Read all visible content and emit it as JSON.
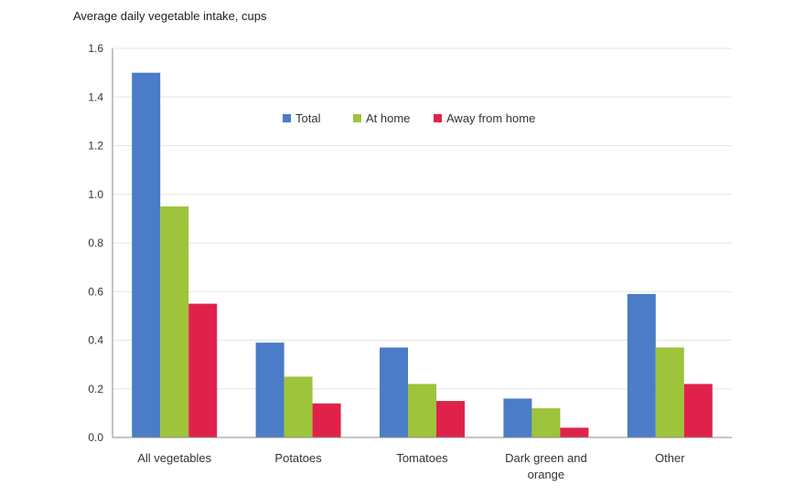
{
  "chart_data": {
    "type": "bar",
    "title": "",
    "ylabel": "Average daily vegetable intake, cups",
    "xlabel": "",
    "ylim": [
      0,
      1.6
    ],
    "yticks": [
      "0.0",
      "0.2",
      "0.4",
      "0.6",
      "0.8",
      "1.0",
      "1.2",
      "1.4",
      "1.6"
    ],
    "categories": [
      [
        "All vegetables"
      ],
      [
        "Potatoes"
      ],
      [
        "Tomatoes"
      ],
      [
        "Dark green and",
        "orange"
      ],
      [
        "Other"
      ]
    ],
    "series": [
      {
        "name": "Total",
        "color": "#4a7cc7",
        "values": [
          1.5,
          0.39,
          0.37,
          0.16,
          0.59
        ]
      },
      {
        "name": "At home",
        "color": "#9dc43a",
        "values": [
          0.95,
          0.25,
          0.22,
          0.12,
          0.37
        ]
      },
      {
        "name": "Away from home",
        "color": "#e0224a",
        "values": [
          0.55,
          0.14,
          0.15,
          0.04,
          0.22
        ]
      }
    ],
    "grid": true,
    "legend_position": "top-center"
  }
}
